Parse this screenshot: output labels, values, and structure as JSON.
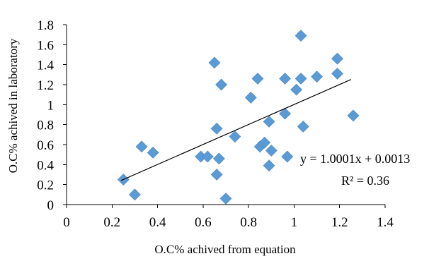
{
  "chart_data": {
    "type": "scatter",
    "xlabel": "O.C%  achived from equation",
    "ylabel": "O.C%  achived in laboratory",
    "xlim": [
      0,
      1.4
    ],
    "ylim": [
      0,
      1.8
    ],
    "xticks": [
      0,
      0.2,
      0.4,
      0.6,
      0.8,
      1,
      1.2,
      1.4
    ],
    "xtick_labels": [
      "0",
      "0.2",
      "0.4",
      "0.6",
      "0.8",
      "1",
      "1.2",
      "1.4"
    ],
    "yticks": [
      0,
      0.2,
      0.4,
      0.6,
      0.8,
      1,
      1.2,
      1.4,
      1.6,
      1.8
    ],
    "ytick_labels": [
      "0",
      "0.2",
      "0.4",
      "0.6",
      "0.8",
      "1",
      "1.2",
      "1.4",
      "1.6",
      "1.8"
    ],
    "grid": false,
    "legend": "none",
    "point_color": "#5b9bd5",
    "marker": "diamond",
    "points": [
      {
        "x": 0.25,
        "y": 0.25
      },
      {
        "x": 0.3,
        "y": 0.1
      },
      {
        "x": 0.33,
        "y": 0.58
      },
      {
        "x": 0.38,
        "y": 0.52
      },
      {
        "x": 0.59,
        "y": 0.48
      },
      {
        "x": 0.62,
        "y": 0.48
      },
      {
        "x": 0.65,
        "y": 1.42
      },
      {
        "x": 0.66,
        "y": 0.76
      },
      {
        "x": 0.66,
        "y": 0.3
      },
      {
        "x": 0.67,
        "y": 0.46
      },
      {
        "x": 0.68,
        "y": 1.2
      },
      {
        "x": 0.7,
        "y": 0.06
      },
      {
        "x": 0.74,
        "y": 0.68
      },
      {
        "x": 0.81,
        "y": 1.07
      },
      {
        "x": 0.84,
        "y": 1.26
      },
      {
        "x": 0.85,
        "y": 0.58
      },
      {
        "x": 0.87,
        "y": 0.62
      },
      {
        "x": 0.89,
        "y": 0.83
      },
      {
        "x": 0.89,
        "y": 0.39
      },
      {
        "x": 0.9,
        "y": 0.54
      },
      {
        "x": 0.96,
        "y": 0.91
      },
      {
        "x": 0.96,
        "y": 1.26
      },
      {
        "x": 0.97,
        "y": 0.48
      },
      {
        "x": 1.01,
        "y": 1.15
      },
      {
        "x": 1.03,
        "y": 1.69
      },
      {
        "x": 1.03,
        "y": 1.26
      },
      {
        "x": 1.04,
        "y": 0.78
      },
      {
        "x": 1.1,
        "y": 1.28
      },
      {
        "x": 1.19,
        "y": 1.46
      },
      {
        "x": 1.19,
        "y": 1.31
      },
      {
        "x": 1.26,
        "y": 0.89
      }
    ],
    "trendline": {
      "slope": 1.0001,
      "intercept": 0.0013,
      "x_range": [
        0.24,
        1.25
      ],
      "equation_label": "y = 1.0001x + 0.0013",
      "r2_label": "R² = 0.36"
    }
  }
}
